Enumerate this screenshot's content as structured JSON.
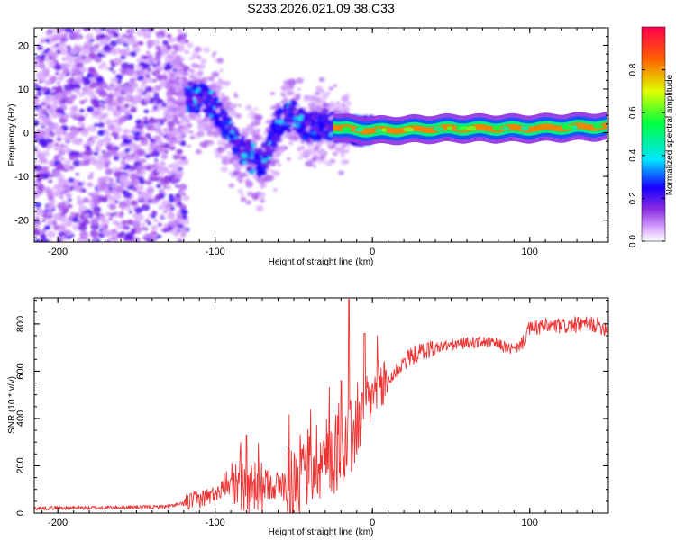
{
  "title": "S233.2026.021.09.38.C33",
  "chart_data": [
    {
      "type": "heatmap",
      "xlabel": "Height of straight line (km)",
      "ylabel": "Frequency (Hz)",
      "xlim": [
        -215,
        150
      ],
      "ylim": [
        -25,
        24
      ],
      "xticks": [
        -200,
        -100,
        0,
        100
      ],
      "yticks": [
        -20,
        -10,
        0,
        10,
        20
      ],
      "colorbar": {
        "label": "Normalized spectral amplitude",
        "range": [
          0,
          1
        ],
        "ticks": [
          "0.0",
          "0.2",
          "0.4",
          "0.6",
          "0.8"
        ],
        "stops": [
          "#ffffff",
          "#b044ff",
          "#1a00ff",
          "#00e5ff",
          "#00ff40",
          "#e0ff00",
          "#ff6000",
          "#ff0040"
        ]
      },
      "ridge": [
        {
          "x": -110,
          "f": 8
        },
        {
          "x": -100,
          "f": 6
        },
        {
          "x": -90,
          "f": -1
        },
        {
          "x": -80,
          "f": -5
        },
        {
          "x": -70,
          "f": -7
        },
        {
          "x": -65,
          "f": -3
        },
        {
          "x": -60,
          "f": 2
        },
        {
          "x": -50,
          "f": 4
        },
        {
          "x": -40,
          "f": 1
        },
        {
          "x": -30,
          "f": 2
        },
        {
          "x": -20,
          "f": 1
        },
        {
          "x": 0,
          "f": 0.5
        },
        {
          "x": 50,
          "f": 1
        },
        {
          "x": 100,
          "f": 1
        },
        {
          "x": 150,
          "f": 1.5
        }
      ]
    },
    {
      "type": "line",
      "xlabel": "Height of straight line (km)",
      "ylabel": "SNR (10 * v/v)",
      "xlim": [
        -215,
        150
      ],
      "ylim": [
        0,
        910
      ],
      "xticks": [
        -200,
        -100,
        0,
        100
      ],
      "yticks": [
        0,
        200,
        400,
        600,
        800
      ],
      "color": "#ee3333",
      "series": [
        {
          "name": "SNR",
          "x": [
            -215,
            -200,
            -180,
            -160,
            -140,
            -130,
            -120,
            -110,
            -100,
            -95,
            -90,
            -85,
            -80,
            -75,
            -70,
            -65,
            -60,
            -55,
            -50,
            -45,
            -40,
            -35,
            -30,
            -25,
            -20,
            -15,
            -10,
            -5,
            0,
            5,
            10,
            15,
            20,
            25,
            30,
            40,
            50,
            60,
            70,
            80,
            85,
            90,
            95,
            100,
            110,
            120,
            130,
            140,
            150
          ],
          "y": [
            20,
            22,
            22,
            24,
            25,
            28,
            40,
            60,
            80,
            100,
            115,
            130,
            100,
            90,
            110,
            130,
            110,
            120,
            130,
            160,
            200,
            230,
            230,
            250,
            280,
            300,
            350,
            430,
            500,
            530,
            560,
            600,
            640,
            665,
            680,
            700,
            710,
            720,
            725,
            715,
            700,
            690,
            720,
            780,
            790,
            790,
            795,
            800,
            780
          ]
        }
      ],
      "peaks": [
        {
          "x": -15,
          "y": 905
        },
        {
          "x": -5,
          "y": 760
        },
        {
          "x": -20,
          "y": 560
        },
        {
          "x": -80,
          "y": 330
        }
      ]
    }
  ]
}
